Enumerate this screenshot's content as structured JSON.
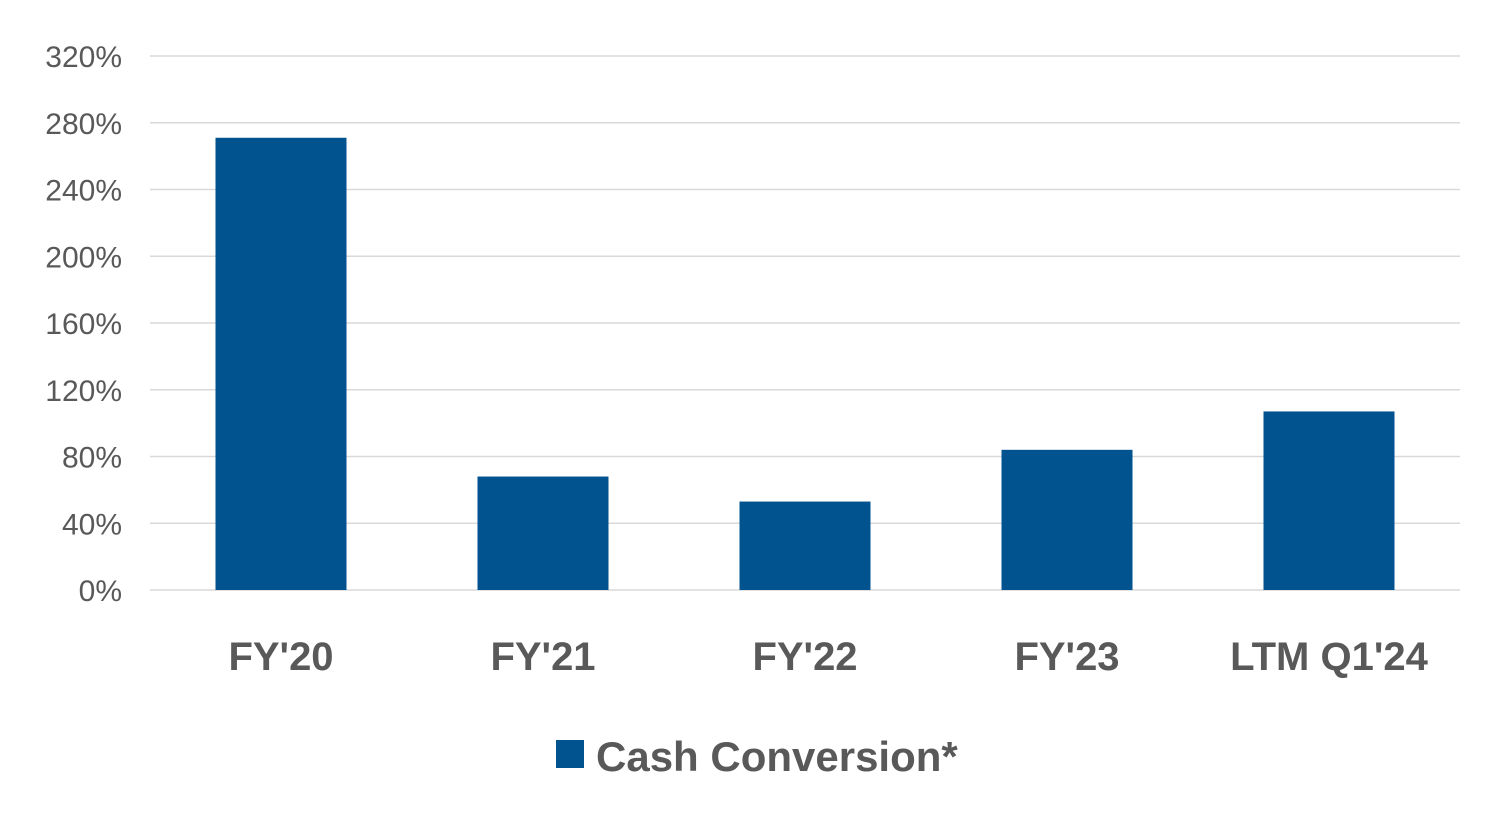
{
  "chart_data": {
    "type": "bar",
    "categories": [
      "FY'20",
      "FY'21",
      "FY'22",
      "FY'23",
      "LTM Q1'24"
    ],
    "series": [
      {
        "name": "Cash Conversion*",
        "values": [
          271,
          68,
          53,
          84,
          107
        ],
        "color": "#00538f"
      }
    ],
    "y_unit": "%",
    "ylim": [
      0,
      320
    ],
    "y_ticks": [
      0,
      40,
      80,
      120,
      160,
      200,
      240,
      280,
      320
    ],
    "y_tick_labels": [
      "0%",
      "40%",
      "80%",
      "120%",
      "160%",
      "200%",
      "240%",
      "280%",
      "320%"
    ],
    "grid": true,
    "legend": {
      "position": "bottom",
      "entries": [
        "Cash Conversion*"
      ]
    }
  }
}
